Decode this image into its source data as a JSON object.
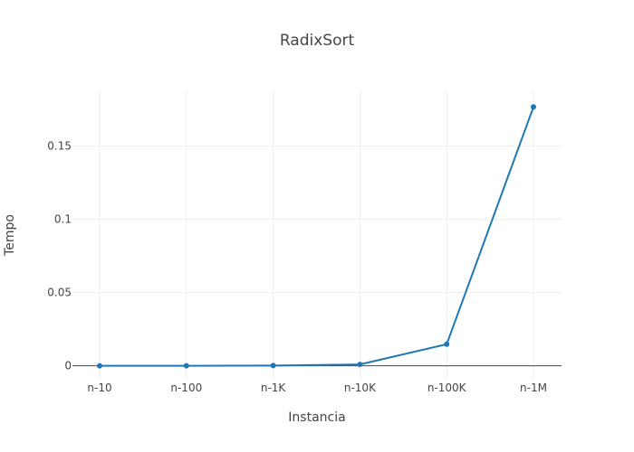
{
  "chart_data": {
    "type": "line",
    "title": "RadixSort",
    "xlabel": "Instancia",
    "ylabel": "Tempo",
    "categories": [
      "n-10",
      "n-100",
      "n-1K",
      "n-10K",
      "n-100K",
      "n-1M"
    ],
    "series": [
      {
        "name": "RadixSort",
        "values": [
          0.0,
          2e-05,
          0.00012,
          0.0009,
          0.0147,
          0.1767
        ]
      }
    ],
    "ylim": [
      -0.0095,
      0.188
    ],
    "yticks": [
      0,
      0.05,
      0.1,
      0.15
    ],
    "ytick_labels": [
      "0",
      "0.05",
      "0.1",
      "0.15"
    ],
    "grid": true,
    "colors": {
      "series": "#1f77b4",
      "grid": "#eeeeee",
      "zero_line": "#444444",
      "text": "#444444"
    }
  }
}
